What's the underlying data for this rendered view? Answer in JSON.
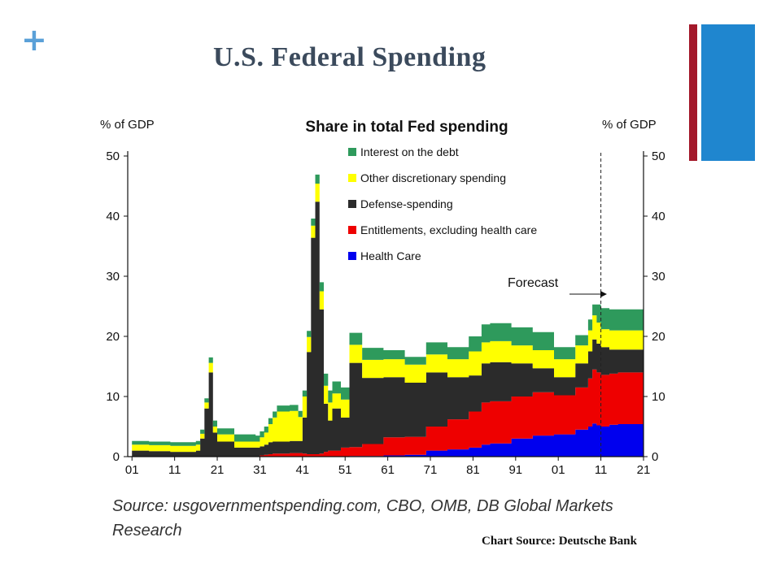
{
  "slide": {
    "title": "U.S. Federal Spending",
    "plus_glyph": "+",
    "accent_red": "#a3182a",
    "accent_blue": "#1f86cf"
  },
  "source_text": "Source: usgovernmentspending.com, CBO, OMB, DB Global Markets Research",
  "chart_source": "Chart Source:  Deutsche Bank",
  "chart_data": {
    "type": "area",
    "stacked": true,
    "title": "Share in total Fed spending",
    "ylabel_left": "% of GDP",
    "ylabel_right": "% of GDP",
    "ylim": [
      0,
      50
    ],
    "yticks": [
      0,
      10,
      20,
      30,
      40,
      50
    ],
    "xlim": [
      1900,
      2021
    ],
    "xticks": [
      "01",
      "11",
      "21",
      "31",
      "41",
      "51",
      "61",
      "71",
      "81",
      "91",
      "01",
      "11",
      "21"
    ],
    "annotation": "Forecast",
    "forecast_start": 2011,
    "legend_position": "top-center",
    "x": [
      1901,
      1905,
      1910,
      1915,
      1916,
      1917,
      1918,
      1919,
      1920,
      1921,
      1925,
      1930,
      1931,
      1932,
      1933,
      1934,
      1935,
      1936,
      1937,
      1938,
      1939,
      1940,
      1941,
      1942,
      1943,
      1944,
      1945,
      1946,
      1947,
      1948,
      1950,
      1952,
      1953,
      1955,
      1960,
      1965,
      1970,
      1975,
      1980,
      1983,
      1985,
      1990,
      1995,
      2000,
      2005,
      2008,
      2009,
      2010,
      2011,
      2013,
      2015,
      2021
    ],
    "series": [
      {
        "name": "Health Care",
        "color": "#0000ee",
        "values": [
          0,
          0,
          0,
          0,
          0,
          0,
          0,
          0,
          0,
          0,
          0,
          0,
          0,
          0,
          0,
          0,
          0,
          0,
          0,
          0,
          0,
          0,
          0,
          0,
          0,
          0,
          0,
          0,
          0,
          0,
          0,
          0.1,
          0.1,
          0.1,
          0.2,
          0.3,
          1,
          1.2,
          1.5,
          2,
          2.2,
          3,
          3.5,
          3.7,
          4.5,
          5,
          5.5,
          5.2,
          5,
          5.3,
          5.4,
          5.8
        ]
      },
      {
        "name": "Entitlements, excluding health care",
        "color": "#ee0000",
        "values": [
          0,
          0,
          0,
          0,
          0,
          0,
          0,
          0,
          0,
          0,
          0,
          0,
          0.2,
          0.3,
          0.4,
          0.5,
          0.5,
          0.5,
          0.5,
          0.6,
          0.6,
          0.6,
          0.5,
          0.4,
          0.4,
          0.4,
          0.5,
          0.8,
          1,
          1,
          1.5,
          1.5,
          1.5,
          2,
          3,
          3,
          4,
          5,
          6,
          7,
          7,
          7,
          7.2,
          6.5,
          7,
          8,
          9,
          8.8,
          8.6,
          8.5,
          8.6,
          8.6
        ]
      },
      {
        "name": "Defense-spending",
        "color": "#2b2b2b",
        "values": [
          1,
          0.9,
          0.8,
          0.8,
          1,
          3,
          8,
          14,
          4,
          2.5,
          1.5,
          1.5,
          1.5,
          1.7,
          2,
          2,
          2,
          2,
          2,
          2,
          2,
          2,
          6,
          17,
          36,
          42,
          24,
          8,
          5,
          7,
          5,
          14,
          14,
          11,
          10,
          9,
          9,
          7,
          6,
          6.5,
          6.5,
          5.5,
          4,
          3,
          4,
          4.5,
          5,
          4.8,
          4.6,
          4,
          3.8,
          3.8
        ]
      },
      {
        "name": "Other discretionary spending",
        "color": "#ffff00",
        "values": [
          1,
          1,
          1,
          1,
          1,
          0.8,
          1,
          1.6,
          1,
          1.2,
          1,
          1,
          1.5,
          2,
          3,
          4,
          5,
          5,
          5,
          5,
          5,
          4,
          3.5,
          2.5,
          2,
          3,
          3,
          3,
          3,
          2.5,
          3,
          3,
          3,
          3,
          3,
          3,
          3,
          3,
          4,
          3.5,
          3.5,
          3,
          3,
          3,
          3,
          3.5,
          4,
          3.5,
          3,
          3.2,
          3.2,
          3.2
        ]
      },
      {
        "name": "Interest on the debt",
        "color": "#2e9a5c",
        "values": [
          0.6,
          0.6,
          0.6,
          0.6,
          0.6,
          0.7,
          0.7,
          0.9,
          1,
          1,
          1.2,
          1,
          1,
          1,
          1,
          1,
          1,
          1,
          1,
          1,
          1,
          1,
          1,
          1,
          1.2,
          1.5,
          1.5,
          2,
          2,
          2,
          2,
          2,
          2,
          2,
          1.5,
          1.3,
          2,
          2,
          2.5,
          3,
          3,
          3,
          3,
          2,
          1.7,
          1.8,
          1.8,
          3,
          3.5,
          3.5,
          3.5,
          3.6
        ]
      }
    ]
  }
}
